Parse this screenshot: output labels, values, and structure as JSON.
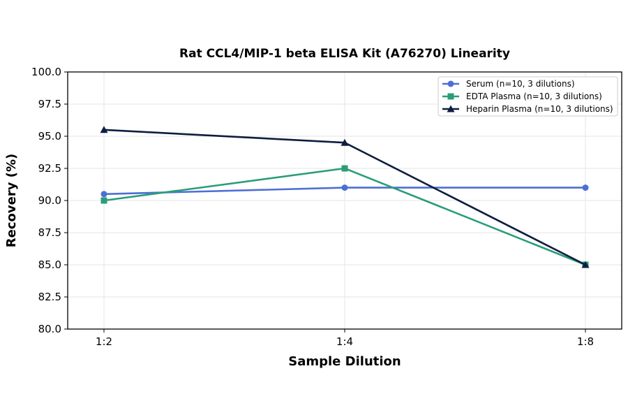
{
  "chart_data": {
    "type": "line",
    "title": "Rat CCL4/MIP-1 beta ELISA Kit (A76270) Linearity",
    "xlabel": "Sample Dilution",
    "ylabel": "Recovery (%)",
    "categories": [
      "1:2",
      "1:4",
      "1:8"
    ],
    "ylim": [
      80.0,
      100.0
    ],
    "yticks": [
      "80.0",
      "82.5",
      "85.0",
      "87.5",
      "90.0",
      "92.5",
      "95.0",
      "97.5",
      "100.0"
    ],
    "grid": true,
    "legend_position": "top-right",
    "series": [
      {
        "name": "Serum (n=10, 3 dilutions)",
        "values": [
          90.5,
          91.0,
          91.0
        ],
        "color": "#4c6fd4",
        "marker": "circle"
      },
      {
        "name": "EDTA Plasma (n=10, 3 dilutions)",
        "values": [
          90.0,
          92.5,
          85.0
        ],
        "color": "#2a9d78",
        "marker": "square"
      },
      {
        "name": "Heparin Plasma (n=10, 3 dilutions)",
        "values": [
          95.5,
          94.5,
          85.0
        ],
        "color": "#0f1d40",
        "marker": "triangle"
      }
    ]
  }
}
